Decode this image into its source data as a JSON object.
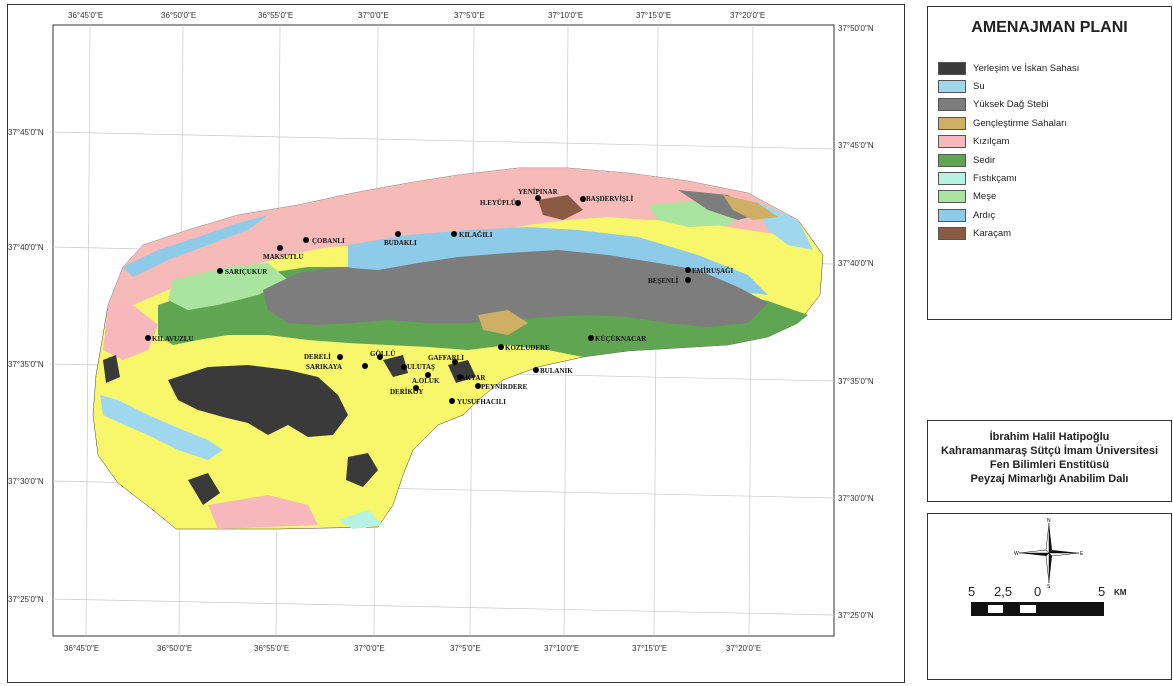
{
  "legend": {
    "title": "AMENAJMAN PLANI",
    "items": [
      {
        "label": "Yerleşim ve İskan Sahası",
        "color": "#3a3a3a"
      },
      {
        "label": "Su",
        "color": "#9fd7ef"
      },
      {
        "label": "Yüksek Dağ Stebi",
        "color": "#7d7d7d"
      },
      {
        "label": "Gençleştirme Sahaları",
        "color": "#cfae65"
      },
      {
        "label": "Kızılçam",
        "color": "#f6b7bd"
      },
      {
        "label": "Sedir",
        "color": "#5fa552"
      },
      {
        "label": "Fıstıkçamı",
        "color": "#b6f3e3"
      },
      {
        "label": "Meşe",
        "color": "#a9e59f"
      },
      {
        "label": "Ardıç",
        "color": "#8ecbe9"
      },
      {
        "label": "Karaçam",
        "color": "#8a5a44"
      }
    ]
  },
  "credits": {
    "name": "İbrahim Halil Hatipoğlu",
    "university": "Kahramanmaraş Sütçü İmam Üniversitesi",
    "institute": "Fen Bilimleri Enstitüsü",
    "department": "Peyzaj Mimarlığı Anabilim Dalı"
  },
  "scale": {
    "ticks": [
      "5",
      "2,5",
      "0",
      "5"
    ],
    "unit": "KM",
    "compass": {
      "n": "N",
      "s": "S",
      "e": "E",
      "w": "W"
    }
  },
  "map": {
    "top_ticks": [
      "36°45'0\"E",
      "36°50'0\"E",
      "36°55'0\"E",
      "37°0'0\"E",
      "37°5'0\"E",
      "37°10'0\"E",
      "37°15'0\"E",
      "37°20'0\"E"
    ],
    "bottom_ticks": [
      "36°45'0\"E",
      "36°50'0\"E",
      "36°55'0\"E",
      "37°0'0\"E",
      "37°5'0\"E",
      "37°10'0\"E",
      "37°15'0\"E",
      "37°20'0\"E"
    ],
    "left_ticks": [
      "37°45'0\"N",
      "37°40'0\"N",
      "37°35'0\"N",
      "37°30'0\"N",
      "37°25'0\"N"
    ],
    "right_ticks": [
      "37°50'0\"N",
      "37°45'0\"N",
      "37°40'0\"N",
      "37°35'0\"N",
      "37°30'0\"N",
      "37°25'0\"N"
    ],
    "villages": [
      "YENİPINAR",
      "H.EYÜPLÜ",
      "BAŞDERVİŞLİ",
      "ÇOBANLI",
      "BUDAKLI",
      "KILAĞILI",
      "MAKSUTLU",
      "SARIÇUKUR",
      "EMİRUŞAĞI",
      "BEŞENLİ",
      "KILAVUZLU",
      "KÜÇÜKNACAR",
      "KOZLUDERE",
      "DERELİ",
      "GÖLLÜ",
      "GAFFARLI",
      "SARIKAYA",
      "ULUTAŞ",
      "BULANIK",
      "YAKYAR",
      "A.OLUK",
      "DERİKÖY",
      "PEYNİRDERE",
      "YUSUFHACILI"
    ]
  }
}
